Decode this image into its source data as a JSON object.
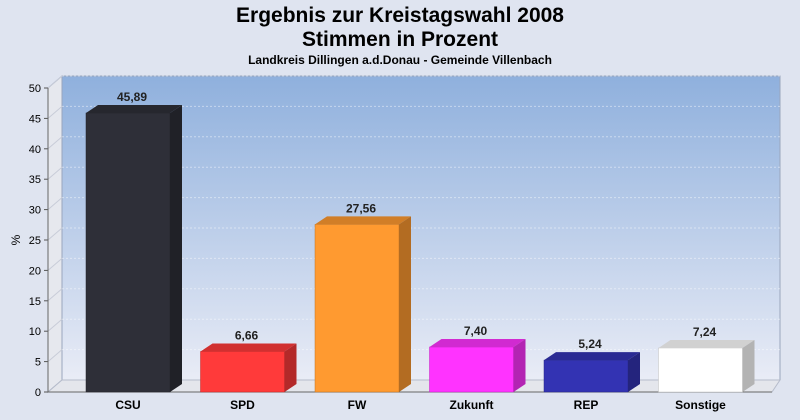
{
  "header": {
    "title_line1": "Ergebnis zur Kreistagswahl 2008",
    "title_line2": "Stimmen in Prozent",
    "subtitle": "Landkreis Dillingen a.d.Donau - Gemeinde Villenbach"
  },
  "chart_data": {
    "type": "bar",
    "title": "Ergebnis zur Kreistagswahl 2008 Stimmen in Prozent",
    "subtitle": "Landkreis Dillingen a.d.Donau - Gemeinde Villenbach",
    "xlabel": "",
    "ylabel": "%",
    "ylim": [
      0,
      50
    ],
    "yticks": [
      0,
      5,
      10,
      15,
      20,
      25,
      30,
      35,
      40,
      45,
      50
    ],
    "grid": true,
    "categories": [
      "CSU",
      "SPD",
      "FW",
      "Zukunft",
      "REP",
      "Sonstige"
    ],
    "values": [
      45.89,
      6.66,
      27.56,
      7.4,
      5.24,
      7.24
    ],
    "value_labels": [
      "45,89",
      "6,66",
      "27,56",
      "7,40",
      "5,24",
      "7,24"
    ],
    "colors": [
      "#2e2f38",
      "#ff3a3a",
      "#ff9a30",
      "#ff33ff",
      "#3333b3",
      "#ffffff"
    ],
    "background_gradient": [
      "#8fb0dd",
      "#e9ecf6"
    ]
  }
}
